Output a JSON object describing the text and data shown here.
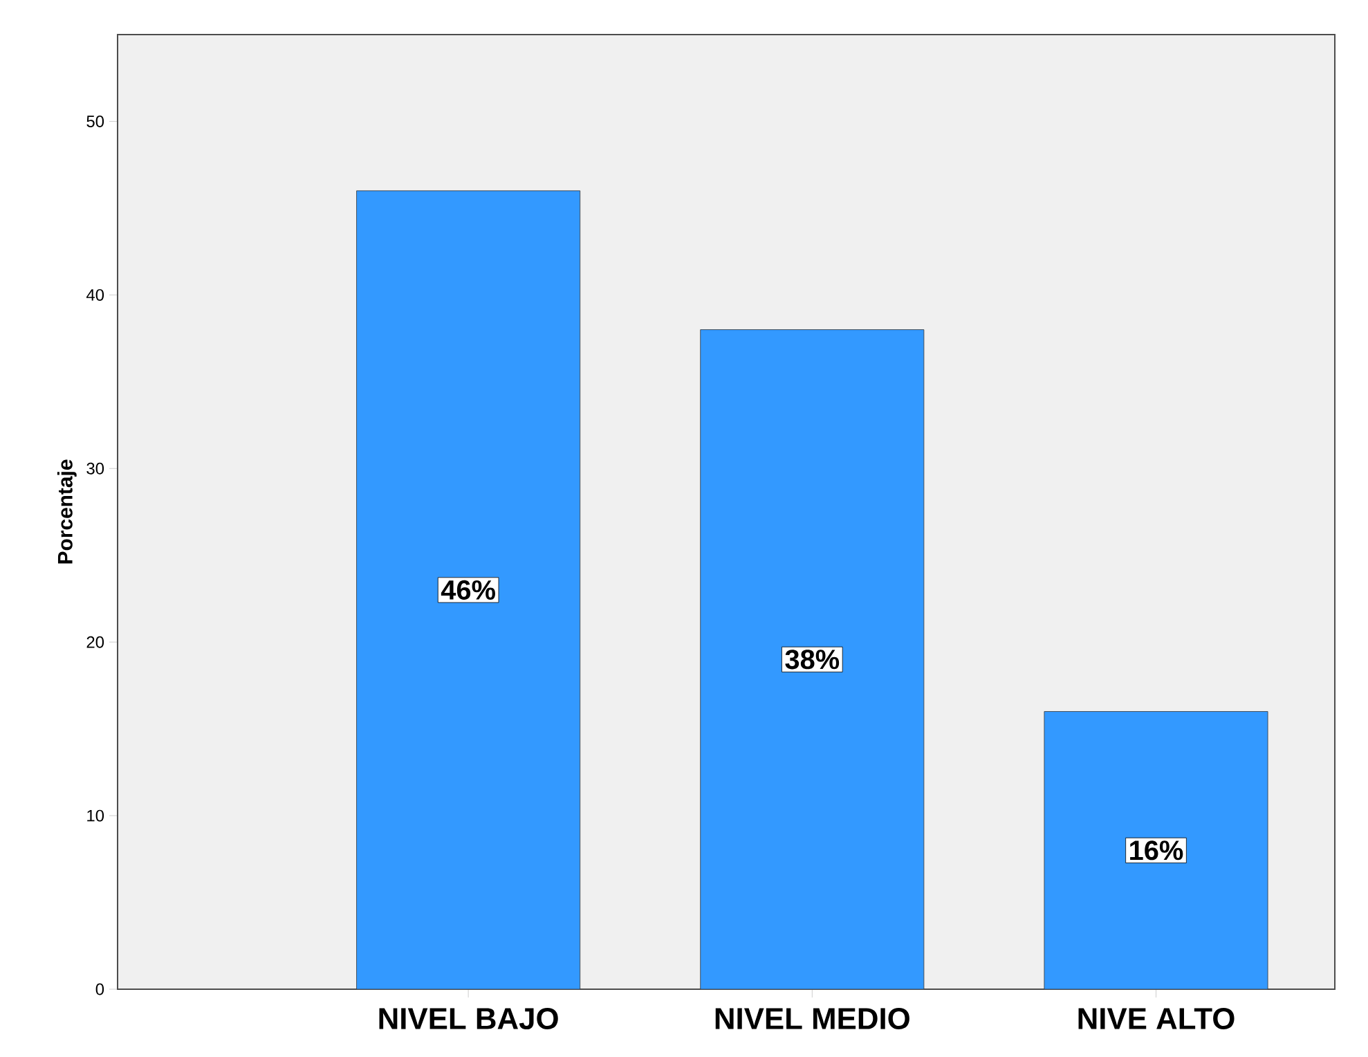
{
  "chart_data": {
    "type": "bar",
    "ylabel": "Porcentaje",
    "categories": [
      "NIVEL BAJO",
      "NIVEL MEDIO",
      "NIVE ALTO"
    ],
    "values": [
      46,
      38,
      16
    ],
    "value_labels": [
      "46%",
      "38%",
      "16%"
    ],
    "color": "#3399ff",
    "ylim": [
      0,
      55
    ],
    "yticks": [
      0,
      10,
      20,
      30,
      40,
      50
    ]
  }
}
